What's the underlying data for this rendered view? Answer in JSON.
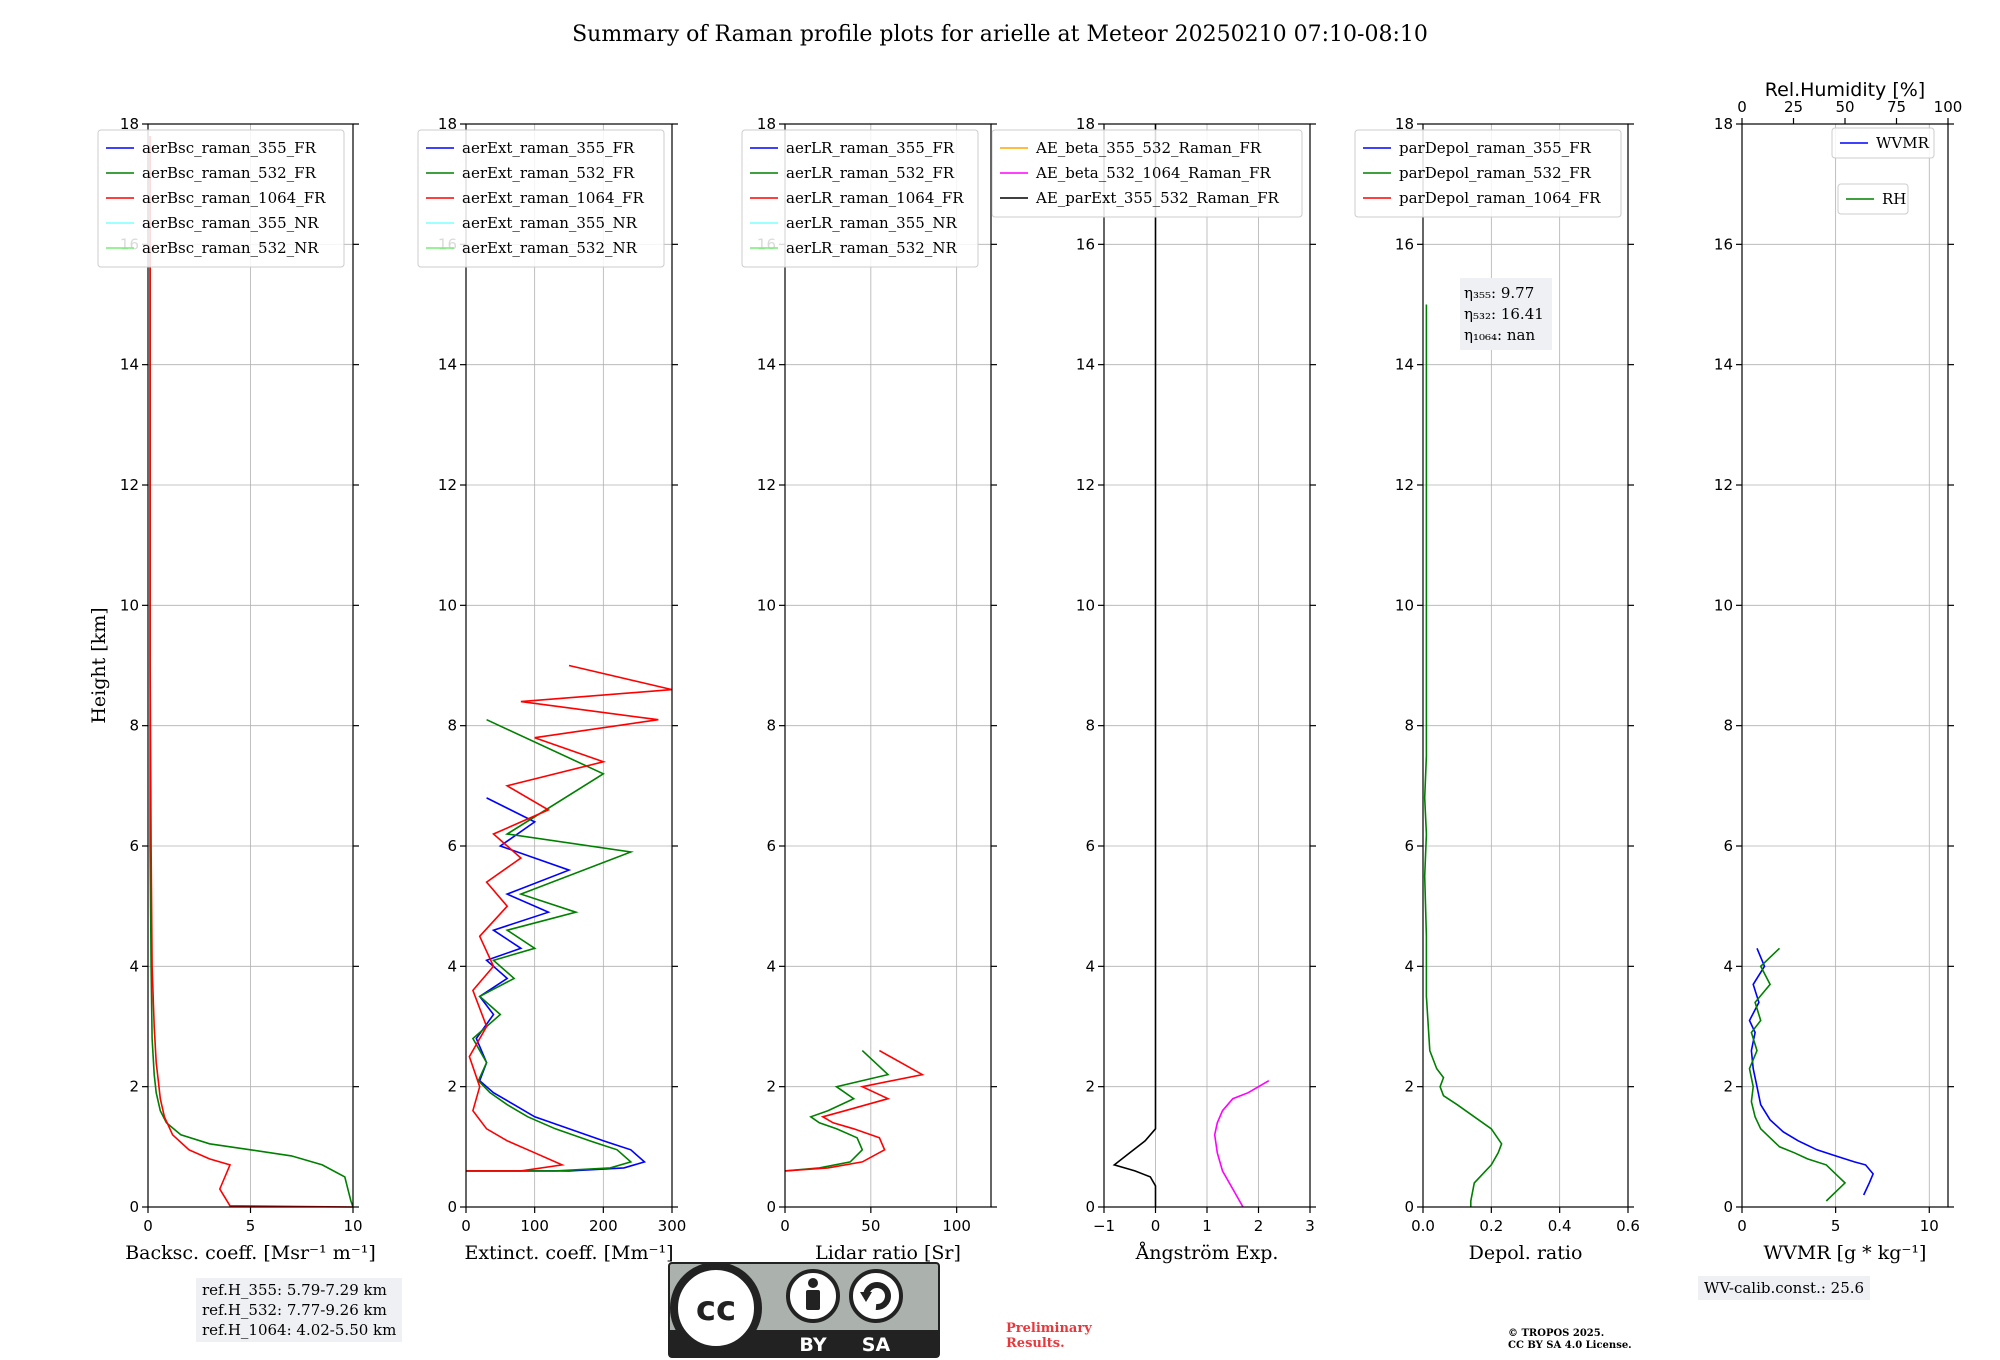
{
  "figure": {
    "title": "Summary of Raman profile plots for arielle at Meteor 20250210 07:10-08:10",
    "ylabel": "Height [km]",
    "colors": {
      "blue": "#0000ff",
      "green": "#008000",
      "red": "#ff0000",
      "cyan": "#7fffff",
      "lightgreen": "#77ee77",
      "orange": "#ffa500",
      "magenta": "#ff00ff",
      "black": "#000000",
      "grid": "#b0b0b0"
    }
  },
  "chart_data": [
    {
      "id": "backscatter",
      "type": "line",
      "xlabel": "Backsc. coeff. [Msr⁻¹ m⁻¹]",
      "xlim": [
        0,
        10
      ],
      "ylim": [
        0,
        18
      ],
      "xticks": [
        0,
        5,
        10
      ],
      "xtick_labels": [
        "0",
        "5",
        "10"
      ],
      "yticks": [
        0,
        2,
        4,
        6,
        8,
        10,
        12,
        14,
        16,
        18
      ],
      "legend": [
        {
          "label": "aerBsc_raman_355_FR",
          "color": "blue"
        },
        {
          "label": "aerBsc_raman_532_FR",
          "color": "green"
        },
        {
          "label": "aerBsc_raman_1064_FR",
          "color": "red"
        },
        {
          "label": "aerBsc_raman_355_NR",
          "color": "cyan"
        },
        {
          "label": "aerBsc_raman_532_NR",
          "color": "lightgreen"
        }
      ],
      "series": [
        {
          "name": "aerBsc_raman_532_FR",
          "color": "green",
          "x": [
            10,
            9.9,
            9.6,
            8.5,
            7,
            5,
            3,
            1.6,
            0.9,
            0.6,
            0.4,
            0.3,
            0.2,
            0.15,
            0.1,
            0.1,
            0.1,
            0.1,
            0.1,
            0.1
          ],
          "y": [
            0,
            0.1,
            0.5,
            0.7,
            0.85,
            0.95,
            1.05,
            1.2,
            1.4,
            1.6,
            1.9,
            2.2,
            2.8,
            4,
            6,
            8,
            10,
            12,
            14,
            17.8
          ]
        },
        {
          "name": "aerBsc_raman_1064_FR",
          "color": "red",
          "x": [
            10,
            4,
            3.5,
            4,
            3,
            2,
            1.2,
            0.8,
            0.6,
            0.5,
            0.4,
            0.3,
            0.2,
            0.15,
            0.1,
            0.1,
            0.1
          ],
          "y": [
            0,
            0.02,
            0.3,
            0.7,
            0.8,
            0.95,
            1.2,
            1.5,
            1.8,
            2.1,
            2.4,
            3,
            4,
            6,
            9,
            13,
            17.8
          ]
        }
      ]
    },
    {
      "id": "extinction",
      "type": "line",
      "xlabel": "Extinct. coeff. [Mm⁻¹]",
      "xlim": [
        0,
        300
      ],
      "ylim": [
        0,
        18
      ],
      "xticks": [
        0,
        100,
        200,
        300
      ],
      "xtick_labels": [
        "0",
        "100",
        "200",
        "300"
      ],
      "yticks": [
        0,
        2,
        4,
        6,
        8,
        10,
        12,
        14,
        16,
        18
      ],
      "legend": [
        {
          "label": "aerExt_raman_355_FR",
          "color": "blue"
        },
        {
          "label": "aerExt_raman_532_FR",
          "color": "green"
        },
        {
          "label": "aerExt_raman_1064_FR",
          "color": "red"
        },
        {
          "label": "aerExt_raman_355_NR",
          "color": "cyan"
        },
        {
          "label": "aerExt_raman_532_NR",
          "color": "lightgreen"
        }
      ],
      "series": [
        {
          "name": "aerExt_raman_355_FR",
          "color": "blue",
          "x": [
            0,
            150,
            230,
            260,
            240,
            200,
            150,
            100,
            70,
            40,
            20,
            30,
            15,
            40,
            20,
            60,
            30,
            80,
            40,
            120,
            60,
            150,
            50,
            100,
            30
          ],
          "y": [
            0.6,
            0.6,
            0.65,
            0.75,
            0.95,
            1.1,
            1.3,
            1.5,
            1.7,
            1.9,
            2.1,
            2.4,
            2.8,
            3.2,
            3.5,
            3.8,
            4.1,
            4.3,
            4.6,
            4.9,
            5.2,
            5.6,
            6.0,
            6.4,
            6.8
          ]
        },
        {
          "name": "aerExt_raman_532_FR",
          "color": "green",
          "x": [
            0,
            130,
            210,
            240,
            220,
            180,
            130,
            90,
            60,
            35,
            18,
            30,
            10,
            50,
            20,
            70,
            40,
            100,
            60,
            160,
            80,
            240,
            60,
            200,
            30
          ],
          "y": [
            0.6,
            0.6,
            0.65,
            0.75,
            0.95,
            1.1,
            1.3,
            1.5,
            1.7,
            1.9,
            2.1,
            2.4,
            2.8,
            3.2,
            3.5,
            3.8,
            4.1,
            4.3,
            4.6,
            4.9,
            5.2,
            5.9,
            6.2,
            7.2,
            8.1
          ]
        },
        {
          "name": "aerExt_raman_1064_FR",
          "color": "red",
          "x": [
            0,
            80,
            140,
            100,
            60,
            30,
            10,
            20,
            5,
            30,
            10,
            40,
            20,
            60,
            30,
            80,
            40,
            120,
            60,
            200,
            100,
            280,
            80,
            300,
            150
          ],
          "y": [
            0.6,
            0.6,
            0.7,
            0.9,
            1.1,
            1.3,
            1.6,
            2.0,
            2.5,
            3.0,
            3.6,
            4.0,
            4.5,
            5.0,
            5.4,
            5.8,
            6.2,
            6.6,
            7.0,
            7.4,
            7.8,
            8.1,
            8.4,
            8.6,
            9.0
          ]
        }
      ]
    },
    {
      "id": "lidar_ratio",
      "type": "line",
      "xlabel": "Lidar ratio [Sr]",
      "xlim": [
        0,
        120
      ],
      "ylim": [
        0,
        18
      ],
      "xticks": [
        0,
        50,
        100
      ],
      "xtick_labels": [
        "0",
        "50",
        "100"
      ],
      "yticks": [
        0,
        2,
        4,
        6,
        8,
        10,
        12,
        14,
        16,
        18
      ],
      "legend": [
        {
          "label": "aerLR_raman_355_FR",
          "color": "blue"
        },
        {
          "label": "aerLR_raman_532_FR",
          "color": "green"
        },
        {
          "label": "aerLR_raman_1064_FR",
          "color": "red"
        },
        {
          "label": "aerLR_raman_355_NR",
          "color": "cyan"
        },
        {
          "label": "aerLR_raman_532_NR",
          "color": "lightgreen"
        }
      ],
      "series": [
        {
          "name": "aerLR_raman_532_FR",
          "color": "green",
          "x": [
            0,
            20,
            38,
            45,
            42,
            30,
            20,
            15,
            25,
            40,
            30,
            60,
            45
          ],
          "y": [
            0.6,
            0.65,
            0.75,
            0.95,
            1.15,
            1.3,
            1.4,
            1.5,
            1.6,
            1.8,
            2.0,
            2.2,
            2.6
          ]
        },
        {
          "name": "aerLR_raman_1064_FR",
          "color": "red",
          "x": [
            0,
            25,
            45,
            58,
            55,
            40,
            28,
            22,
            35,
            60,
            45,
            80,
            55
          ],
          "y": [
            0.6,
            0.65,
            0.75,
            0.95,
            1.15,
            1.3,
            1.4,
            1.5,
            1.6,
            1.8,
            2.0,
            2.2,
            2.6
          ]
        }
      ]
    },
    {
      "id": "angstrom",
      "type": "line",
      "xlabel": "Ångström Exp.",
      "xlim": [
        -1,
        3
      ],
      "ylim": [
        0,
        18
      ],
      "xticks": [
        -1,
        0,
        1,
        2,
        3
      ],
      "xtick_labels": [
        "−1",
        "0",
        "1",
        "2",
        "3"
      ],
      "yticks": [
        0,
        2,
        4,
        6,
        8,
        10,
        12,
        14,
        16,
        18
      ],
      "legend": [
        {
          "label": "AE_beta_355_532_Raman_FR",
          "color": "orange"
        },
        {
          "label": "AE_beta_532_1064_Raman_FR",
          "color": "magenta"
        },
        {
          "label": "AE_parExt_355_532_Raman_FR",
          "color": "black"
        }
      ],
      "series": [
        {
          "name": "AE_beta_532_1064_Raman_FR",
          "color": "magenta",
          "x": [
            1.7,
            1.5,
            1.3,
            1.2,
            1.15,
            1.2,
            1.3,
            1.5,
            1.8,
            2.0,
            2.2
          ],
          "y": [
            0,
            0.3,
            0.6,
            0.9,
            1.2,
            1.4,
            1.6,
            1.8,
            1.9,
            2.0,
            2.1
          ]
        },
        {
          "name": "AE_parExt_355_532_Raman_FR",
          "color": "black",
          "x": [
            0,
            0,
            0,
            -0.1,
            -0.4,
            -0.6,
            -0.8,
            -0.5,
            -0.2,
            0,
            0,
            0,
            0
          ],
          "y": [
            0,
            0.2,
            0.35,
            0.5,
            0.6,
            0.65,
            0.7,
            0.9,
            1.1,
            1.3,
            1.6,
            5,
            18
          ]
        }
      ]
    },
    {
      "id": "depol",
      "type": "line",
      "xlabel": "Depol. ratio",
      "xlim": [
        0,
        0.6
      ],
      "ylim": [
        0,
        18
      ],
      "xticks": [
        0,
        0.2,
        0.4,
        0.6
      ],
      "xtick_labels": [
        "0.0",
        "0.2",
        "0.4",
        "0.6"
      ],
      "yticks": [
        0,
        2,
        4,
        6,
        8,
        10,
        12,
        14,
        16,
        18
      ],
      "legend": [
        {
          "label": "parDepol_raman_355_FR",
          "color": "blue"
        },
        {
          "label": "parDepol_raman_532_FR",
          "color": "green"
        },
        {
          "label": "parDepol_raman_1064_FR",
          "color": "red"
        }
      ],
      "annotation": {
        "lines": [
          "η₃₅₅: 9.77",
          "η₅₃₂: 16.41",
          "η₁₀₆₄: nan"
        ]
      },
      "series": [
        {
          "name": "parDepol_raman_532_FR",
          "color": "green",
          "x": [
            0.14,
            0.14,
            0.15,
            0.2,
            0.22,
            0.23,
            0.2,
            0.15,
            0.1,
            0.06,
            0.05,
            0.06,
            0.04,
            0.02,
            0.01,
            0.01,
            0.005,
            0.01,
            0.005,
            0.01,
            0.01,
            0.01,
            0.01
          ],
          "y": [
            0,
            0.1,
            0.4,
            0.7,
            0.9,
            1.05,
            1.3,
            1.5,
            1.7,
            1.85,
            2.0,
            2.15,
            2.3,
            2.6,
            3.5,
            4.5,
            5.5,
            6.2,
            6.8,
            7.5,
            9,
            12,
            15
          ]
        }
      ]
    },
    {
      "id": "wvmr",
      "type": "line",
      "xlabel": "WVMR [g * kg⁻¹]",
      "xlim": [
        0,
        11
      ],
      "ylim": [
        0,
        18
      ],
      "xticks": [
        0,
        5,
        10
      ],
      "xtick_labels": [
        "0",
        "5",
        "10"
      ],
      "yticks": [
        0,
        2,
        4,
        6,
        8,
        10,
        12,
        14,
        16,
        18
      ],
      "top_axis": {
        "label": "Rel.Humidity [%]",
        "xlim": [
          0,
          100
        ],
        "ticks": [
          0,
          25,
          50,
          75,
          100
        ],
        "tick_labels": [
          "0",
          "25",
          "50",
          "75",
          "100"
        ]
      },
      "legend": [
        {
          "label": "WVMR",
          "color": "blue"
        },
        {
          "label": "RH",
          "color": "green"
        }
      ],
      "series": [
        {
          "name": "WVMR",
          "color": "blue",
          "x": [
            6.5,
            6.8,
            7.0,
            6.6,
            6.0,
            5.0,
            4.0,
            3.0,
            2.2,
            1.5,
            1.0,
            0.8,
            0.6,
            0.5,
            0.7,
            0.4,
            0.9,
            0.6,
            1.2,
            0.8
          ],
          "y": [
            0.2,
            0.4,
            0.55,
            0.7,
            0.75,
            0.85,
            0.95,
            1.1,
            1.25,
            1.45,
            1.7,
            2.0,
            2.3,
            2.6,
            2.9,
            3.1,
            3.4,
            3.7,
            4.0,
            4.3
          ]
        },
        {
          "name": "RH",
          "color": "green",
          "x": [
            4.5,
            5.5,
            5.0,
            4.5,
            3.5,
            2.8,
            2.0,
            1.5,
            1.0,
            0.7,
            0.5,
            0.6,
            0.4,
            0.8,
            0.5,
            1.0,
            0.7,
            1.5,
            1.0,
            2.0
          ],
          "y": [
            0.1,
            0.4,
            0.55,
            0.7,
            0.8,
            0.9,
            1.0,
            1.15,
            1.3,
            1.5,
            1.75,
            2.0,
            2.3,
            2.6,
            2.9,
            3.1,
            3.4,
            3.7,
            4.0,
            4.3
          ]
        }
      ]
    }
  ],
  "info": {
    "ref_heights": [
      "ref.H_355: 5.79-7.29 km",
      "ref.H_532: 7.77-9.26 km",
      "ref.H_1064: 4.02-5.50 km"
    ],
    "wv_calib": "WV-calib.const.: 25.6",
    "preliminary": [
      "Preliminary",
      "Results."
    ],
    "copyright": [
      "© TROPOS 2025.",
      "CC BY SA 4.0 License."
    ]
  },
  "license_badge": {
    "cc": "cc",
    "by": "BY",
    "sa": "SA",
    "bg": "#abb1ac",
    "dark": "#222222"
  }
}
